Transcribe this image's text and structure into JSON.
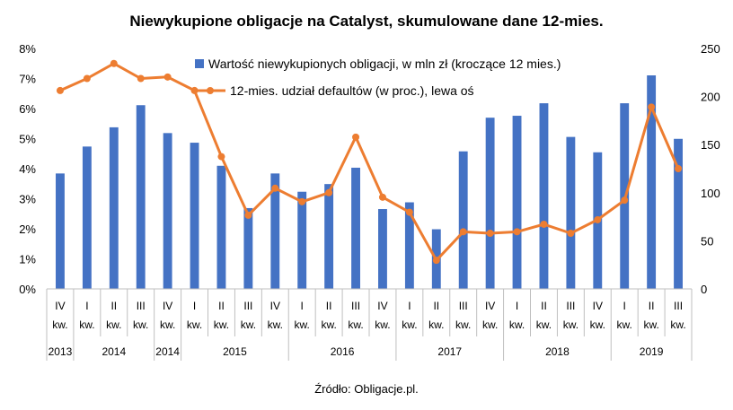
{
  "chart_data": {
    "type": "bar+line",
    "title": "Niewykupione obligacje na Catalyst, skumulowane dane 12-mies.",
    "source": "Źródło: Obligacje.pl.",
    "x": {
      "quarter_labels": [
        [
          "IV",
          "kw."
        ],
        [
          "I",
          "kw."
        ],
        [
          "II",
          "kw."
        ],
        [
          "III",
          "kw."
        ],
        [
          "IV",
          "kw."
        ],
        [
          "I",
          "kw."
        ],
        [
          "II",
          "kw."
        ],
        [
          "III",
          "kw."
        ],
        [
          "IV",
          "kw."
        ],
        [
          "I",
          "kw."
        ],
        [
          "II",
          "kw."
        ],
        [
          "III",
          "kw."
        ],
        [
          "IV",
          "kw."
        ],
        [
          "I",
          "kw."
        ],
        [
          "II",
          "kw."
        ],
        [
          "III",
          "kw."
        ],
        [
          "IV",
          "kw."
        ],
        [
          "I",
          "kw."
        ],
        [
          "II",
          "kw."
        ],
        [
          "III",
          "kw."
        ],
        [
          "IV",
          "kw."
        ],
        [
          "I",
          "kw."
        ],
        [
          "II",
          "kw."
        ],
        [
          "III",
          "kw."
        ]
      ],
      "year_groups": [
        {
          "label": "2013",
          "span": 1
        },
        {
          "label": "2014",
          "span": 3
        },
        {
          "label": "2014",
          "span": 1
        },
        {
          "label": "2015",
          "span": 4
        },
        {
          "label": "2016",
          "span": 4
        },
        {
          "label": "2017",
          "span": 4
        },
        {
          "label": "2018",
          "span": 4
        },
        {
          "label": "2019",
          "span": 3
        }
      ]
    },
    "left_axis": {
      "ticks": [
        "0%",
        "1%",
        "2%",
        "3%",
        "4%",
        "5%",
        "6%",
        "7%",
        "8%"
      ],
      "ylim": [
        0,
        8
      ]
    },
    "right_axis": {
      "ticks": [
        "0",
        "50",
        "100",
        "150",
        "200",
        "250"
      ],
      "ylim": [
        0,
        250
      ]
    },
    "series": [
      {
        "name": "Wartość niewykupionych obligacji, w mln zł (kroczące 12 mies.)",
        "kind": "bar",
        "axis": "right",
        "color": "#4472C4",
        "values": [
          120,
          148,
          168,
          191,
          162,
          152,
          128,
          84,
          120,
          101,
          109,
          126,
          83,
          90,
          62,
          143,
          178,
          180,
          193,
          158,
          142,
          193,
          222,
          156
        ]
      },
      {
        "name": "12-mies. udział defaultów (w proc.), lewa oś",
        "kind": "line",
        "axis": "left",
        "color": "#ED7D31",
        "values": [
          6.6,
          7.0,
          7.5,
          7.0,
          7.05,
          6.6,
          4.4,
          2.45,
          3.35,
          2.9,
          3.2,
          5.05,
          3.05,
          2.55,
          0.95,
          1.9,
          1.85,
          1.9,
          2.15,
          1.85,
          2.3,
          2.95,
          6.05,
          4.0
        ]
      }
    ],
    "legend": "top-right",
    "grid": false
  }
}
